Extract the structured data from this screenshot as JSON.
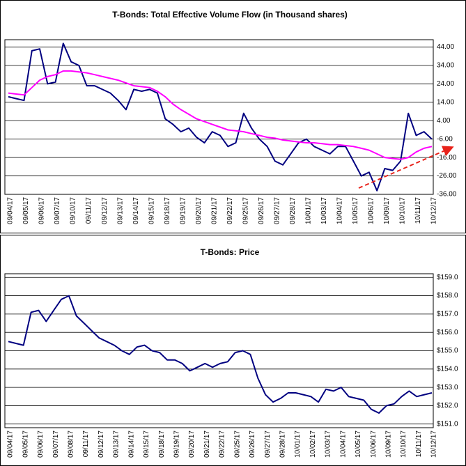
{
  "chart_data": [
    {
      "type": "line",
      "title": "T-Bonds: Total Effective Volume Flow (in Thousand shares)",
      "categories": [
        "09/04/17",
        null,
        "09/05/17",
        null,
        "09/06/17",
        null,
        "09/07/17",
        null,
        "09/10/17",
        null,
        "09/11/17",
        null,
        "09/12/17",
        null,
        "09/13/17",
        null,
        "09/14/17",
        null,
        "09/15/17",
        null,
        "09/18/17",
        null,
        "09/19/17",
        null,
        "09/20/17",
        null,
        "09/21/17",
        null,
        "09/22/17",
        null,
        "09/25/17",
        null,
        "09/26/17",
        null,
        "09/27/17",
        null,
        "09/28/17",
        null,
        "10/01/17",
        null,
        "10/03/17",
        null,
        "10/04/17",
        null,
        "10/05/17",
        null,
        "10/06/17",
        null,
        "10/09/17",
        null,
        "10/10/17",
        null,
        "10/11/17",
        null,
        "10/12/17"
      ],
      "series": [
        {
          "color": "#000080",
          "values": [
            17,
            16,
            15,
            42,
            43,
            24,
            25,
            46,
            36,
            34,
            23,
            23,
            21,
            19,
            15,
            10,
            21,
            20,
            21,
            19,
            5,
            2,
            -2,
            0,
            -5,
            -8,
            -2,
            -4,
            -10,
            -8,
            8,
            0,
            -6,
            -10,
            -18,
            -20,
            -14,
            -8,
            -6,
            -10,
            -12,
            -14,
            -10,
            -10,
            -18,
            -26,
            -24,
            -34,
            -22,
            -23,
            -18,
            8,
            -4,
            -2,
            -6
          ]
        },
        {
          "color": "#ff00ff",
          "values": [
            19,
            18.5,
            18,
            22,
            26,
            28,
            29,
            31,
            31,
            30.5,
            30,
            29,
            28,
            27,
            26,
            24.5,
            23,
            22.5,
            22,
            20,
            17,
            13,
            10,
            7.5,
            5,
            3.5,
            2,
            0.5,
            -1,
            -1.5,
            -2,
            -3,
            -4,
            -5,
            -5.5,
            -6.5,
            -7,
            -7.5,
            -8,
            -8,
            -8.5,
            -9,
            -9,
            -9.5,
            -10,
            -11,
            -12,
            -14,
            -16,
            -16.5,
            -17,
            -16,
            -13,
            -11,
            -10
          ]
        }
      ],
      "ylim": [
        -36,
        48
      ],
      "yticks": [
        {
          "value": -36,
          "label": "-36.00"
        },
        {
          "value": -26,
          "label": "-26.00"
        },
        {
          "value": -16,
          "label": "-16.00"
        },
        {
          "value": -6,
          "label": "-6.00"
        },
        {
          "value": 4,
          "label": "4.00"
        },
        {
          "value": 14,
          "label": "14.00"
        },
        {
          "value": 24,
          "label": "24.00"
        },
        {
          "value": 34,
          "label": "34.00"
        },
        {
          "value": 44,
          "label": "44.00"
        }
      ],
      "grid": true
    },
    {
      "type": "line",
      "title": "T-Bonds: Price",
      "categories": [
        "09/04/17",
        null,
        "09/05/17",
        null,
        "09/06/17",
        null,
        "09/07/17",
        null,
        "09/08/17",
        null,
        "09/11/17",
        null,
        "09/12/17",
        null,
        "09/13/17",
        null,
        "09/14/17",
        null,
        "09/15/17",
        null,
        "09/18/17",
        null,
        "09/19/17",
        null,
        "09/20/17",
        null,
        "09/21/17",
        null,
        "09/22/17",
        null,
        "09/25/17",
        null,
        "09/26/17",
        null,
        "09/27/17",
        null,
        "09/28/17",
        null,
        "10/01/17",
        null,
        "10/02/17",
        null,
        "10/03/17",
        null,
        "10/04/17",
        null,
        "10/05/17",
        null,
        "10/06/17",
        null,
        "10/09/17",
        null,
        "10/10/17",
        null,
        "10/11/17",
        null,
        "10/12/17"
      ],
      "series": [
        {
          "color": "#000080",
          "values": [
            155.5,
            155.4,
            155.3,
            157.1,
            157.2,
            156.6,
            157.2,
            157.8,
            158.0,
            156.9,
            156.5,
            156.1,
            155.7,
            155.5,
            155.3,
            155.0,
            154.8,
            155.2,
            155.3,
            155.0,
            154.9,
            154.5,
            154.5,
            154.3,
            153.9,
            154.1,
            154.3,
            154.1,
            154.3,
            154.4,
            154.9,
            155.0,
            154.8,
            153.5,
            152.6,
            152.2,
            152.4,
            152.7,
            152.7,
            152.6,
            152.5,
            152.2,
            152.9,
            152.8,
            153.0,
            152.5,
            152.4,
            152.3,
            151.8,
            151.6,
            152.0,
            152.1,
            152.5,
            152.8,
            152.5,
            152.6,
            152.7
          ]
        }
      ],
      "ylim": [
        150.8,
        159.2
      ],
      "yticks": [
        {
          "value": 151,
          "label": "$151.0"
        },
        {
          "value": 152,
          "label": "$152.0"
        },
        {
          "value": 153,
          "label": "$153.0"
        },
        {
          "value": 154,
          "label": "$154.0"
        },
        {
          "value": 155,
          "label": "$155.0"
        },
        {
          "value": 156,
          "label": "$156.0"
        },
        {
          "value": 157,
          "label": "$157.0"
        },
        {
          "value": 158,
          "label": "$158.0"
        },
        {
          "value": 159,
          "label": "$159.0"
        }
      ],
      "grid": true
    }
  ]
}
